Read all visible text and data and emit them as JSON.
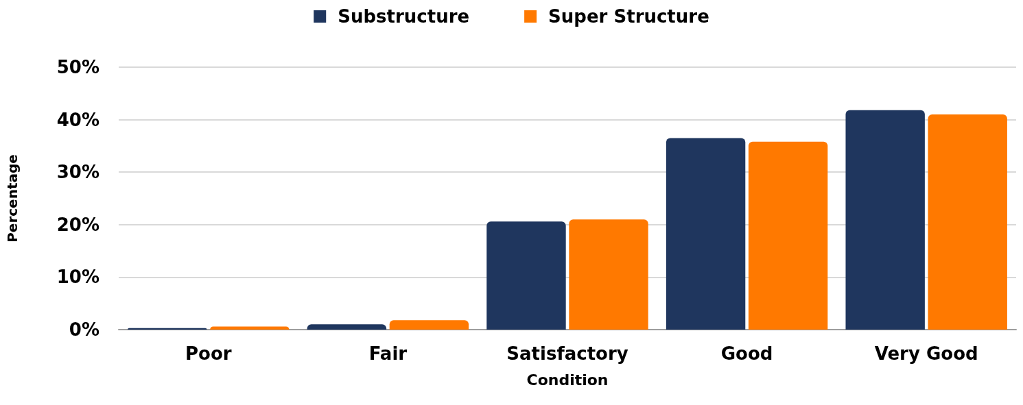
{
  "chart_data": {
    "type": "bar",
    "xlabel": "Condition",
    "ylabel": "Percentage",
    "categories": [
      "Poor",
      "Fair",
      "Satisfactory",
      "Good",
      "Very Good"
    ],
    "series": [
      {
        "name": "Substructure",
        "color": "#1f365e",
        "values": [
          0.3,
          1.0,
          20.6,
          36.5,
          41.8
        ]
      },
      {
        "name": "Super Structure",
        "color": "#ff7900",
        "values": [
          0.6,
          1.8,
          21.0,
          35.8,
          41.0
        ]
      }
    ],
    "ylim": [
      0,
      50
    ],
    "yticks": [
      {
        "value": 0,
        "label": "0%"
      },
      {
        "value": 10,
        "label": "10%"
      },
      {
        "value": 20,
        "label": "20%"
      },
      {
        "value": 30,
        "label": "30%"
      },
      {
        "value": 40,
        "label": "40%"
      },
      {
        "value": 50,
        "label": "50%"
      }
    ],
    "grid": "y",
    "legend": "top"
  }
}
